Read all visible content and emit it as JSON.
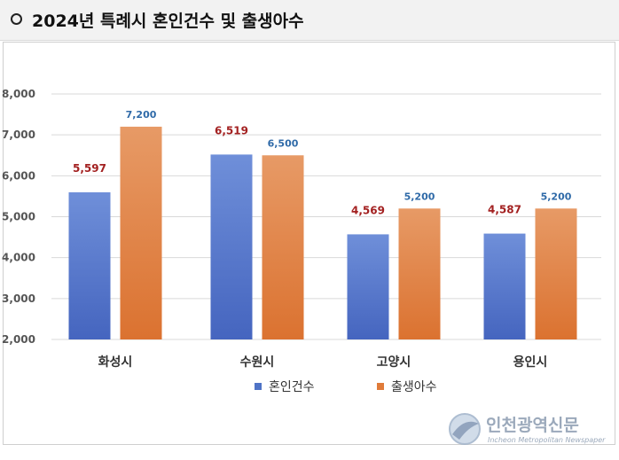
{
  "header": {
    "title": "2024년 특례시 혼인건수 및 출생아수"
  },
  "colors": {
    "marriage": "#4f73c6",
    "births": "#e07b39",
    "header_bg": "#f2f2f2"
  },
  "chart_data": {
    "type": "bar",
    "categories": [
      "화성시",
      "수원시",
      "고양시",
      "용인시"
    ],
    "series": [
      {
        "name": "혼인건수",
        "values": [
          5597,
          6519,
          4569,
          4587
        ],
        "labels": [
          "5,597",
          "6,519",
          "4,569",
          "4,587"
        ]
      },
      {
        "name": "출생아수",
        "values": [
          7200,
          6500,
          5200,
          5200
        ],
        "labels": [
          "7,200",
          "6,500",
          "5,200",
          "5,200"
        ]
      }
    ],
    "ylim": [
      2000,
      8000
    ],
    "yticks": [
      2000,
      3000,
      4000,
      5000,
      6000,
      7000,
      8000
    ],
    "ytick_labels": [
      "2,000",
      "3,000",
      "4,000",
      "5,000",
      "6,000",
      "7,000",
      "8,000"
    ],
    "grid": true,
    "legend_position": "bottom"
  },
  "watermark": {
    "text": "인천광역신문",
    "sub": "Incheon Metropolitan Newspaper"
  }
}
